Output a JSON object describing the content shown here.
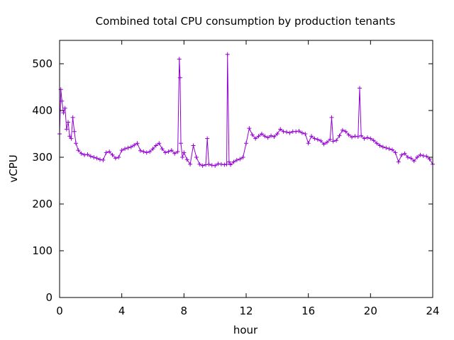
{
  "chart_data": {
    "type": "line",
    "title": "Combined total CPU consumption by production tenants",
    "xlabel": "hour",
    "ylabel": "vCPU",
    "xlim": [
      0,
      24
    ],
    "ylim": [
      0,
      550
    ],
    "xticks": [
      0,
      4,
      8,
      12,
      16,
      20,
      24
    ],
    "yticks": [
      0,
      100,
      200,
      300,
      400,
      500
    ],
    "grid": false,
    "series": [
      {
        "name": "vCPU",
        "color": "#9400d3",
        "marker": "plus",
        "x": [
          0.0,
          0.08,
          0.15,
          0.25,
          0.35,
          0.45,
          0.55,
          0.65,
          0.75,
          0.85,
          0.95,
          1.05,
          1.2,
          1.4,
          1.6,
          1.8,
          2.0,
          2.2,
          2.4,
          2.6,
          2.8,
          3.0,
          3.2,
          3.4,
          3.6,
          3.8,
          4.0,
          4.2,
          4.4,
          4.6,
          4.8,
          5.0,
          5.2,
          5.4,
          5.6,
          5.8,
          6.0,
          6.2,
          6.4,
          6.6,
          6.8,
          7.0,
          7.2,
          7.4,
          7.6,
          7.7,
          7.75,
          7.8,
          7.9,
          8.0,
          8.2,
          8.4,
          8.6,
          8.8,
          9.0,
          9.2,
          9.4,
          9.5,
          9.6,
          9.8,
          10.0,
          10.2,
          10.4,
          10.6,
          10.75,
          10.8,
          10.9,
          11.0,
          11.2,
          11.4,
          11.6,
          11.8,
          12.0,
          12.2,
          12.4,
          12.6,
          12.8,
          13.0,
          13.2,
          13.4,
          13.6,
          13.8,
          14.0,
          14.2,
          14.4,
          14.6,
          14.8,
          15.0,
          15.2,
          15.4,
          15.6,
          15.8,
          16.0,
          16.2,
          16.4,
          16.6,
          16.8,
          17.0,
          17.2,
          17.4,
          17.5,
          17.6,
          17.8,
          18.0,
          18.2,
          18.4,
          18.6,
          18.8,
          19.0,
          19.2,
          19.3,
          19.4,
          19.6,
          19.8,
          20.0,
          20.2,
          20.4,
          20.6,
          20.8,
          21.0,
          21.2,
          21.4,
          21.6,
          21.8,
          22.0,
          22.2,
          22.4,
          22.6,
          22.8,
          23.0,
          23.2,
          23.4,
          23.6,
          23.8,
          24.0
        ],
        "y": [
          350,
          445,
          420,
          395,
          405,
          360,
          375,
          345,
          340,
          385,
          355,
          330,
          315,
          308,
          305,
          306,
          302,
          300,
          298,
          295,
          294,
          310,
          312,
          305,
          298,
          300,
          315,
          318,
          320,
          322,
          326,
          330,
          314,
          312,
          310,
          312,
          318,
          325,
          330,
          318,
          310,
          312,
          315,
          308,
          312,
          510,
          470,
          330,
          300,
          310,
          295,
          285,
          325,
          300,
          285,
          282,
          284,
          340,
          285,
          283,
          282,
          286,
          285,
          284,
          285,
          520,
          290,
          284,
          290,
          294,
          296,
          300,
          330,
          362,
          348,
          340,
          345,
          350,
          345,
          342,
          346,
          344,
          350,
          360,
          355,
          354,
          352,
          355,
          355,
          356,
          352,
          350,
          330,
          345,
          340,
          338,
          335,
          328,
          332,
          338,
          385,
          334,
          336,
          346,
          358,
          355,
          348,
          343,
          345,
          344,
          448,
          346,
          340,
          342,
          340,
          336,
          330,
          325,
          322,
          320,
          318,
          316,
          310,
          290,
          305,
          308,
          300,
          298,
          292,
          300,
          305,
          303,
          302,
          296,
          285
        ]
      }
    ]
  }
}
